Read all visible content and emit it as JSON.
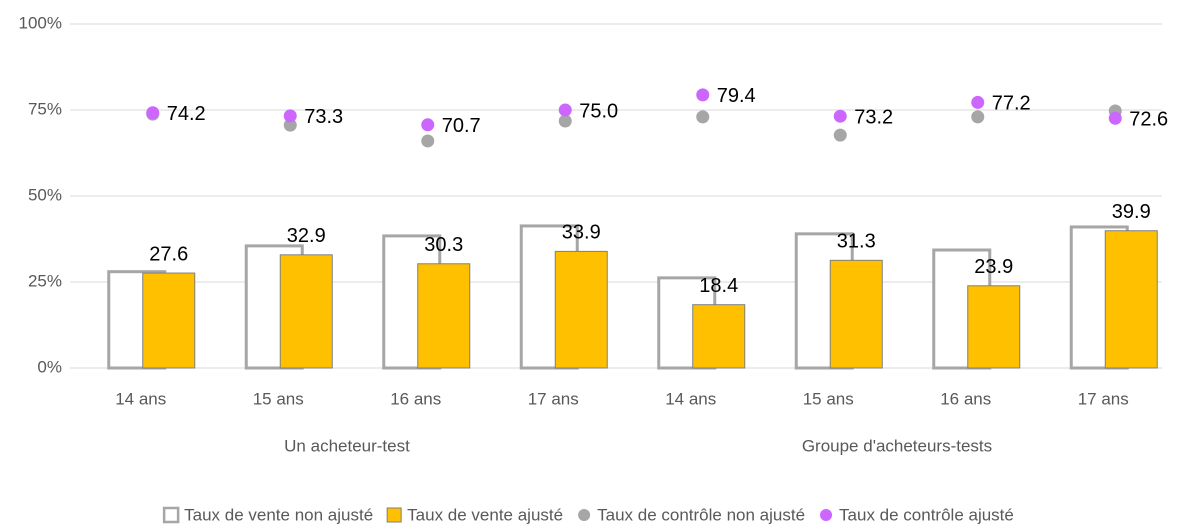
{
  "chart_data": {
    "type": "bar",
    "categories": [
      "14 ans",
      "15 ans",
      "16 ans",
      "17 ans",
      "14 ans",
      "15 ans",
      "16 ans",
      "17 ans"
    ],
    "groups": [
      "Un acheteur-test",
      "Groupe d'acheteurs-tests"
    ],
    "series": [
      {
        "name": "Taux de vente non ajusté",
        "kind": "bar-back",
        "color": "#ffffff",
        "stroke": "#a6a6a6",
        "values": [
          28,
          35.5,
          38.4,
          41.3,
          26.2,
          39,
          34.3,
          41
        ]
      },
      {
        "name": "Taux de vente ajusté",
        "kind": "bar",
        "color": "#ffc000",
        "stroke": "#7f7f7f",
        "values": [
          27.6,
          32.9,
          30.3,
          33.9,
          18.4,
          31.3,
          23.9,
          39.9
        ],
        "labels": true
      },
      {
        "name": "Taux de contrôle non ajusté",
        "kind": "dot",
        "color": "#a6a6a6",
        "values": [
          73.8,
          70.6,
          66,
          71.8,
          73,
          67.7,
          73,
          74.7
        ]
      },
      {
        "name": "Taux de contrôle ajusté",
        "kind": "dot",
        "color": "#cc66ff",
        "values": [
          74.2,
          73.3,
          70.7,
          75,
          79.4,
          73.2,
          77.2,
          72.6
        ],
        "value_labels": [
          "74.2",
          "73.3",
          "70.7",
          "75.0",
          "79.4",
          "73.2",
          "77.2",
          "72.6"
        ]
      }
    ],
    "ylim": [
      0,
      100
    ],
    "yticks": [
      {
        "value": 0,
        "label": "0%"
      },
      {
        "value": 25,
        "label": "25%"
      },
      {
        "value": 50,
        "label": "50%"
      },
      {
        "value": 75,
        "label": "75%"
      },
      {
        "value": 100,
        "label": "100%"
      }
    ],
    "grid": true
  }
}
